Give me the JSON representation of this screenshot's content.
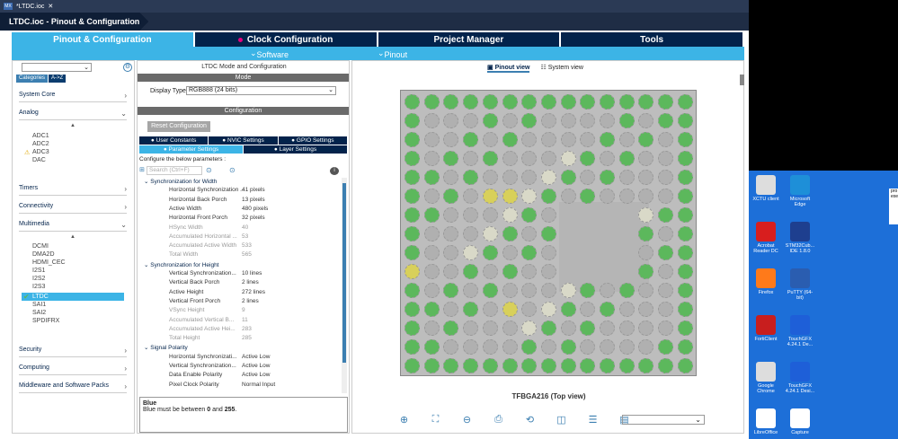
{
  "window": {
    "tab_title": "*LTDC.ioc",
    "editor_tab": "LTDC.ioc - Pinout & Configuration"
  },
  "main_tabs": [
    {
      "label": "Pinout & Configuration",
      "active": true
    },
    {
      "label": "Clock Configuration",
      "modified": true
    },
    {
      "label": "Project Manager"
    },
    {
      "label": "Tools"
    }
  ],
  "sub_tabs": {
    "software_packs": "Software Packs",
    "pinout": "Pinout"
  },
  "left_panel": {
    "categories_label": "Categories",
    "atoz_label": "A->Z",
    "groups": [
      {
        "label": "System Core"
      },
      {
        "label": "Analog"
      },
      {
        "label": "Timers"
      },
      {
        "label": "Connectivity"
      },
      {
        "label": "Multimedia"
      },
      {
        "label": "Security"
      },
      {
        "label": "Computing"
      },
      {
        "label": "Middleware and Software Packs"
      }
    ],
    "analog_items": [
      "ADC1",
      "ADC2",
      "ADC3",
      "DAC"
    ],
    "multimedia_items": [
      "DCMI",
      "DMA2D",
      "HDMI_CEC",
      "I2S1",
      "I2S2",
      "I2S3",
      "LTDC",
      "SAI1",
      "SAI2",
      "SPDIFRX"
    ]
  },
  "mid_panel": {
    "header": "LTDC Mode and Configuration",
    "mode_bar": "Mode",
    "display_type_label": "Display Type",
    "display_type_value": "RGB888 (24 bits)",
    "config_bar": "Configuration",
    "reset_button": "Reset Configuration",
    "tabs_row1": [
      "User Constants",
      "NVIC Settings",
      "GPIO Settings"
    ],
    "tabs_row2": [
      "Parameter Settings",
      "Layer Settings"
    ],
    "configure_text": "Configure the below parameters :",
    "search_placeholder": "Search (Ctrl+F)",
    "sections": [
      {
        "title": "Synchronization for Width",
        "rows": [
          [
            "Horizontal Synchronization ...",
            "41 pixels",
            false
          ],
          [
            "Horizontal Back Porch",
            "13 pixels",
            false
          ],
          [
            "Active Width",
            "480 pixels",
            false
          ],
          [
            "Horizontal Front Porch",
            "32 pixels",
            false
          ],
          [
            "HSync Width",
            "40",
            true
          ],
          [
            "Accumulated Horizontal ...",
            "53",
            true
          ],
          [
            "Accumulated Active Width",
            "533",
            true
          ],
          [
            "Total Width",
            "565",
            true
          ]
        ]
      },
      {
        "title": "Synchronization for Height",
        "rows": [
          [
            "Vertical Synchronization...",
            "10 lines",
            false
          ],
          [
            "Vertical Back Porch",
            "2 lines",
            false
          ],
          [
            "Active Height",
            "272 lines",
            false
          ],
          [
            "Vertical Front Porch",
            "2 lines",
            false
          ],
          [
            "VSync Height",
            "9",
            true
          ],
          [
            "Accumulated Vertical B...",
            "11",
            true
          ],
          [
            "Accumulated Active Hei...",
            "283",
            true
          ],
          [
            "Total Height",
            "285",
            true
          ]
        ]
      },
      {
        "title": "Signal Polarity",
        "rows": [
          [
            "Horizontal Synchronizati...",
            "Active Low",
            false
          ],
          [
            "Vertical Synchronization...",
            "Active Low",
            false
          ],
          [
            "Data Enable Polarity",
            "Active Low",
            false
          ],
          [
            "Pixel Clock Polarity",
            "Normal Input",
            false
          ]
        ]
      }
    ],
    "desc_title": "Blue",
    "desc_text_pre": "Blue must be between ",
    "desc_min": "0",
    "desc_mid": " and ",
    "desc_max": "255",
    "desc_end": "."
  },
  "right_panel": {
    "pinout_view": "Pinout view",
    "system_view": "System view",
    "package_title": "TFBGA216 (Top view)"
  },
  "desktop": {
    "icons": [
      "XCTU client",
      "Microsoft Edge",
      "Acrobat Reader DC",
      "STM32Cub... IDE 1.8.0",
      "Firefox",
      "PuTTY (64-bit)",
      "FortiClient",
      "TouchGFX 4.24.1 De...",
      "Google Chrome",
      "TouchGFX 4.24.1 Desi...",
      "LibreOffice",
      "Capture"
    ],
    "edge_text": "pro\nexe"
  },
  "colors": {
    "accent": "#3cb4e6",
    "navy": "#03234b",
    "pin_green": "#5cb85c",
    "pin_yellow": "#d8d05a",
    "pin_gray": "#b0b0b0",
    "desktop_bg": "#1d6fd8"
  }
}
